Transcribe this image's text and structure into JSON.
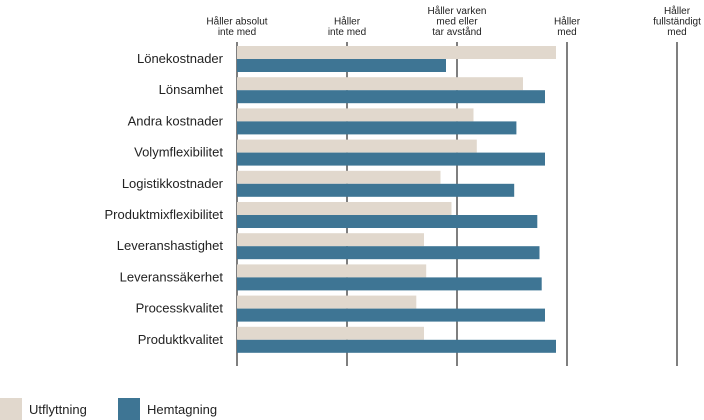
{
  "chart_data": {
    "type": "bar",
    "orientation": "horizontal",
    "title": "",
    "xlim": [
      1,
      5
    ],
    "ticks": [
      {
        "value": 1,
        "label": [
          "Håller absolut",
          "inte med"
        ]
      },
      {
        "value": 2,
        "label": [
          "Håller",
          "inte med"
        ]
      },
      {
        "value": 3,
        "label": [
          "Håller varken",
          "med eller",
          "tar avstånd"
        ]
      },
      {
        "value": 4,
        "label": [
          "Håller",
          "med"
        ]
      },
      {
        "value": 5,
        "label": [
          "Håller",
          "fullständigt",
          "med"
        ]
      }
    ],
    "categories": [
      "Lönekostnader",
      "Lönsamhet",
      "Andra kostnader",
      "Volymflexibilitet",
      "Logistikkostnader",
      "Produktmixflexibilitet",
      "Leveranshastighet",
      "Leveranssäkerhet",
      "Processkvalitet",
      "Produktkvalitet"
    ],
    "series": [
      {
        "name": "Utflyttning",
        "color": "#e1d8cd",
        "values": [
          3.9,
          3.6,
          3.15,
          3.18,
          2.85,
          2.95,
          2.7,
          2.72,
          2.63,
          2.7
        ]
      },
      {
        "name": "Hemtagning",
        "color": "#3e7594",
        "values": [
          2.9,
          3.8,
          3.54,
          3.8,
          3.52,
          3.73,
          3.75,
          3.77,
          3.8,
          3.9
        ]
      }
    ],
    "grid": true,
    "legend": "bottom-left"
  }
}
